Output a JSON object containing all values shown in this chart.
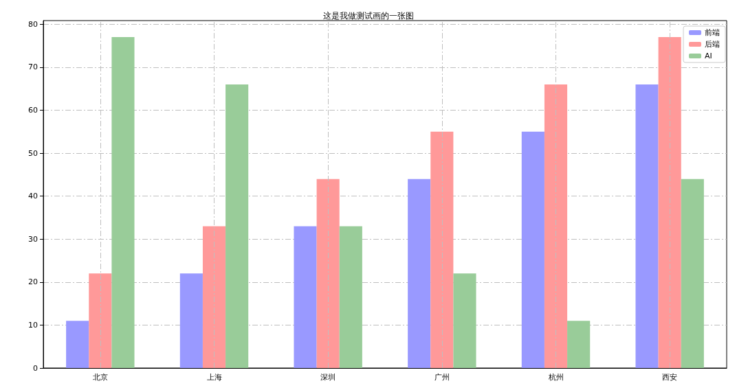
{
  "chart_data": {
    "type": "bar",
    "title": "这是我做测试画的一张图",
    "categories": [
      "北京",
      "上海",
      "深圳",
      "广州",
      "杭州",
      "西安"
    ],
    "series": [
      {
        "name": "前端",
        "color": "#9999ff",
        "values": [
          11,
          22,
          33,
          44,
          55,
          66
        ]
      },
      {
        "name": "后端",
        "color": "#ff9999",
        "values": [
          22,
          33,
          44,
          55,
          66,
          77
        ]
      },
      {
        "name": "AI",
        "color": "#99cc99",
        "values": [
          77,
          66,
          33,
          22,
          11,
          44
        ]
      }
    ],
    "ylim": [
      0,
      80.85
    ],
    "yticks": [
      0,
      10,
      20,
      30,
      40,
      50,
      60,
      70,
      80
    ],
    "grid": true,
    "legend": "top right"
  }
}
